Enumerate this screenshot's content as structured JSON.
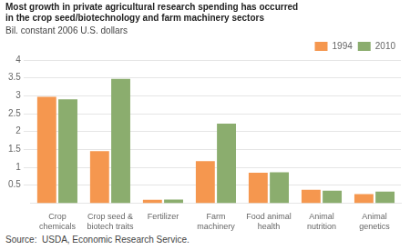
{
  "chart_data": {
    "type": "bar",
    "title": [
      "Most growth in private agricultural research spending has occurred",
      "in the crop seed/biotechnology and farm machinery sectors"
    ],
    "ylabel": "Bil. constant 2006 U.S. dollars",
    "source": "Source:  USDA, Economic Research Service.",
    "categories": [
      "Crop\nchemicals",
      "Crop seed &\nbiotech traits",
      "Fertilizer",
      "Farm\nmachinery",
      "Food animal\nhealth",
      "Animal\nnutrition",
      "Animal\ngenetics"
    ],
    "series": [
      {
        "name": "1994",
        "color": "#F5974F",
        "values": [
          2.97,
          1.45,
          0.09,
          1.17,
          0.85,
          0.37,
          0.25
        ]
      },
      {
        "name": "2010",
        "color": "#8BAD6E",
        "values": [
          2.9,
          3.47,
          0.1,
          2.22,
          0.86,
          0.35,
          0.32
        ]
      }
    ],
    "ylim": [
      0,
      4.0
    ],
    "yticks": [
      0.5,
      1.0,
      1.5,
      2.0,
      2.5,
      3.0,
      3.5,
      4.0
    ],
    "grid": true,
    "legend": "upper right"
  }
}
